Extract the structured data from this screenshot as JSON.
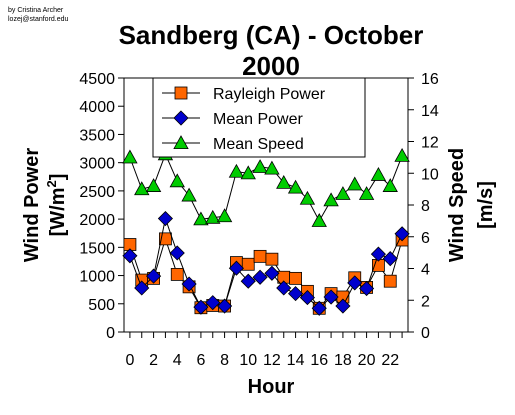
{
  "credit": {
    "author": "by Cristina Archer",
    "email": "lozej@stanford.edu"
  },
  "chart_data": {
    "type": "line",
    "title_line1": "Sandberg (CA) - October",
    "title_line2": "2000",
    "xlabel": "Hour",
    "ylabel_left_main": "Wind Power",
    "ylabel_left_unit": "[W/m",
    "ylabel_left_sup": "2",
    "ylabel_left_close": "]",
    "ylabel_right_main": "Wind Speed",
    "ylabel_right_unit": "[m/s]",
    "x": [
      0,
      1,
      2,
      3,
      4,
      5,
      6,
      7,
      8,
      9,
      10,
      11,
      12,
      13,
      14,
      15,
      16,
      17,
      18,
      19,
      20,
      21,
      22,
      23
    ],
    "xlim": [
      -0.5,
      23.5
    ],
    "x_ticks": [
      "0",
      "2",
      "4",
      "6",
      "8",
      "10",
      "12",
      "14",
      "16",
      "18",
      "20",
      "22"
    ],
    "ylim_left": [
      0,
      4500
    ],
    "y_ticks_left": [
      "0",
      "500",
      "1000",
      "1500",
      "2000",
      "2500",
      "3000",
      "3500",
      "4000",
      "4500"
    ],
    "ylim_right": [
      0,
      16
    ],
    "y_ticks_right": [
      "0",
      "2",
      "4",
      "6",
      "8",
      "10",
      "12",
      "14",
      "16"
    ],
    "legend_position": "top-center",
    "series": [
      {
        "name": "Rayleigh Power",
        "axis": "left",
        "marker": "square",
        "color": "#ff6600",
        "values": [
          1550,
          920,
          950,
          1650,
          1020,
          800,
          430,
          470,
          460,
          1230,
          1200,
          1340,
          1290,
          970,
          950,
          720,
          420,
          680,
          620,
          960,
          790,
          1180,
          900,
          1630
        ]
      },
      {
        "name": "Mean Power",
        "axis": "left",
        "marker": "diamond",
        "color": "#0000cc",
        "values": [
          1350,
          780,
          990,
          2010,
          1400,
          850,
          440,
          520,
          460,
          1130,
          900,
          970,
          1040,
          780,
          680,
          610,
          420,
          620,
          460,
          870,
          770,
          1380,
          1300,
          1740
        ]
      },
      {
        "name": "Mean Speed",
        "axis": "right",
        "marker": "triangle",
        "color": "#00cc00",
        "values": [
          11.0,
          9.0,
          9.2,
          11.2,
          9.5,
          8.6,
          7.1,
          7.2,
          7.3,
          10.1,
          10.0,
          10.4,
          10.3,
          9.4,
          9.1,
          8.4,
          7.0,
          8.3,
          8.7,
          9.3,
          8.7,
          9.9,
          9.2,
          11.1
        ]
      }
    ]
  }
}
